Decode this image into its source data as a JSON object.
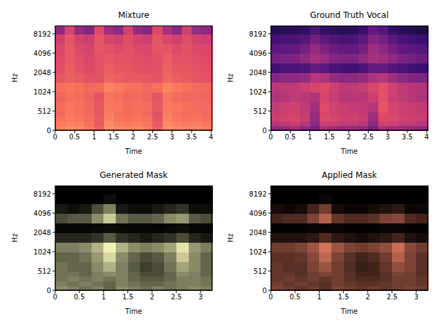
{
  "chart_data": [
    {
      "type": "heatmap",
      "title": "Mixture",
      "x_label": "Time",
      "y_label": "Hz",
      "log": "y",
      "xlim": [
        0,
        4.03
      ],
      "xticks": [
        0,
        0.5,
        1,
        1.5,
        2,
        2.5,
        3,
        3.5,
        4
      ],
      "ylim": [
        0,
        11025
      ],
      "yticks": [
        0,
        512,
        1024,
        2048,
        4096,
        8192
      ],
      "x_bins": [
        0,
        0.25,
        0.5,
        0.75,
        1,
        1.25,
        1.5,
        1.75,
        2,
        2.25,
        2.5,
        2.75,
        3,
        3.25,
        3.5,
        3.75,
        4.03
      ],
      "y_bins": [
        0,
        128,
        256,
        384,
        512,
        724,
        1024,
        1448,
        2048,
        2896,
        4096,
        5793,
        8192,
        11025
      ],
      "cells": [
        [
          0.74,
          0.76,
          0.75,
          0.72,
          0.66,
          0.77,
          0.75,
          0.74,
          0.75,
          0.73,
          0.66,
          0.77,
          0.75,
          0.74,
          0.75,
          0.73
        ],
        [
          0.72,
          0.74,
          0.73,
          0.7,
          0.64,
          0.76,
          0.73,
          0.72,
          0.73,
          0.71,
          0.64,
          0.75,
          0.73,
          0.72,
          0.73,
          0.71
        ],
        [
          0.7,
          0.73,
          0.71,
          0.69,
          0.64,
          0.74,
          0.71,
          0.7,
          0.71,
          0.7,
          0.63,
          0.74,
          0.72,
          0.7,
          0.71,
          0.69
        ],
        [
          0.68,
          0.72,
          0.7,
          0.68,
          0.63,
          0.73,
          0.7,
          0.69,
          0.7,
          0.68,
          0.62,
          0.73,
          0.7,
          0.69,
          0.7,
          0.68
        ],
        [
          0.69,
          0.71,
          0.7,
          0.68,
          0.64,
          0.72,
          0.71,
          0.69,
          0.7,
          0.69,
          0.64,
          0.72,
          0.71,
          0.7,
          0.69,
          0.68
        ],
        [
          0.67,
          0.7,
          0.69,
          0.67,
          0.63,
          0.71,
          0.7,
          0.68,
          0.69,
          0.67,
          0.63,
          0.71,
          0.69,
          0.68,
          0.68,
          0.67
        ],
        [
          0.7,
          0.71,
          0.7,
          0.68,
          0.69,
          0.74,
          0.72,
          0.7,
          0.7,
          0.68,
          0.7,
          0.74,
          0.72,
          0.7,
          0.69,
          0.68
        ],
        [
          0.63,
          0.66,
          0.64,
          0.62,
          0.62,
          0.67,
          0.65,
          0.64,
          0.64,
          0.63,
          0.62,
          0.67,
          0.65,
          0.64,
          0.63,
          0.62
        ],
        [
          0.61,
          0.65,
          0.62,
          0.6,
          0.62,
          0.65,
          0.63,
          0.63,
          0.62,
          0.61,
          0.62,
          0.66,
          0.63,
          0.63,
          0.62,
          0.61
        ],
        [
          0.6,
          0.64,
          0.61,
          0.59,
          0.62,
          0.64,
          0.62,
          0.62,
          0.61,
          0.6,
          0.62,
          0.65,
          0.62,
          0.62,
          0.61,
          0.6
        ],
        [
          0.59,
          0.64,
          0.6,
          0.58,
          0.63,
          0.62,
          0.6,
          0.62,
          0.6,
          0.59,
          0.63,
          0.63,
          0.6,
          0.62,
          0.6,
          0.59
        ],
        [
          0.56,
          0.63,
          0.57,
          0.55,
          0.63,
          0.58,
          0.56,
          0.61,
          0.57,
          0.55,
          0.63,
          0.59,
          0.56,
          0.61,
          0.57,
          0.55
        ],
        [
          0.4,
          0.58,
          0.42,
          0.38,
          0.6,
          0.44,
          0.4,
          0.56,
          0.42,
          0.38,
          0.6,
          0.46,
          0.4,
          0.56,
          0.42,
          0.4
        ]
      ]
    },
    {
      "type": "heatmap",
      "title": "Ground Truth Vocal",
      "x_label": "Time",
      "y_label": "Hz",
      "log": "y",
      "xlim": [
        0,
        4.03
      ],
      "xticks": [
        0,
        0.5,
        1,
        1.5,
        2,
        2.5,
        3,
        3.5,
        4
      ],
      "ylim": [
        0,
        11025
      ],
      "yticks": [
        0,
        512,
        1024,
        2048,
        4096,
        8192
      ],
      "x_bins": [
        0,
        0.25,
        0.5,
        0.75,
        1,
        1.25,
        1.5,
        1.75,
        2,
        2.25,
        2.5,
        2.75,
        3,
        3.25,
        3.5,
        3.75,
        4.03
      ],
      "y_bins": [
        0,
        128,
        256,
        384,
        512,
        724,
        1024,
        1448,
        2048,
        2896,
        4096,
        5793,
        8192,
        11025
      ],
      "cells": [
        [
          0.4,
          0.42,
          0.45,
          0.4,
          0.35,
          0.45,
          0.44,
          0.42,
          0.42,
          0.4,
          0.34,
          0.46,
          0.45,
          0.43,
          0.42,
          0.4
        ],
        [
          0.5,
          0.52,
          0.54,
          0.5,
          0.4,
          0.55,
          0.54,
          0.52,
          0.52,
          0.5,
          0.4,
          0.56,
          0.55,
          0.53,
          0.52,
          0.5
        ],
        [
          0.55,
          0.57,
          0.58,
          0.54,
          0.42,
          0.6,
          0.58,
          0.56,
          0.56,
          0.54,
          0.44,
          0.6,
          0.59,
          0.57,
          0.56,
          0.54
        ],
        [
          0.54,
          0.56,
          0.57,
          0.53,
          0.42,
          0.59,
          0.57,
          0.55,
          0.55,
          0.53,
          0.45,
          0.61,
          0.58,
          0.56,
          0.55,
          0.53
        ],
        [
          0.52,
          0.55,
          0.56,
          0.52,
          0.45,
          0.6,
          0.56,
          0.54,
          0.53,
          0.52,
          0.5,
          0.63,
          0.58,
          0.55,
          0.54,
          0.52
        ],
        [
          0.48,
          0.5,
          0.52,
          0.5,
          0.48,
          0.58,
          0.53,
          0.5,
          0.5,
          0.5,
          0.55,
          0.62,
          0.55,
          0.52,
          0.5,
          0.48
        ],
        [
          0.5,
          0.52,
          0.52,
          0.55,
          0.58,
          0.6,
          0.55,
          0.52,
          0.52,
          0.54,
          0.58,
          0.62,
          0.56,
          0.52,
          0.5,
          0.48
        ],
        [
          0.38,
          0.4,
          0.4,
          0.42,
          0.5,
          0.48,
          0.42,
          0.4,
          0.4,
          0.42,
          0.48,
          0.5,
          0.44,
          0.4,
          0.38,
          0.36
        ],
        [
          0.22,
          0.24,
          0.24,
          0.25,
          0.3,
          0.28,
          0.24,
          0.22,
          0.22,
          0.24,
          0.3,
          0.3,
          0.26,
          0.24,
          0.22,
          0.2
        ],
        [
          0.34,
          0.36,
          0.36,
          0.4,
          0.45,
          0.42,
          0.38,
          0.36,
          0.36,
          0.4,
          0.46,
          0.44,
          0.4,
          0.36,
          0.34,
          0.32
        ],
        [
          0.28,
          0.3,
          0.3,
          0.34,
          0.42,
          0.36,
          0.32,
          0.3,
          0.3,
          0.34,
          0.44,
          0.4,
          0.34,
          0.3,
          0.28,
          0.26
        ],
        [
          0.22,
          0.24,
          0.24,
          0.26,
          0.34,
          0.28,
          0.25,
          0.24,
          0.24,
          0.28,
          0.38,
          0.34,
          0.28,
          0.24,
          0.22,
          0.2
        ],
        [
          0.14,
          0.16,
          0.16,
          0.18,
          0.24,
          0.18,
          0.16,
          0.16,
          0.16,
          0.2,
          0.3,
          0.26,
          0.18,
          0.16,
          0.14,
          0.12
        ]
      ]
    },
    {
      "type": "heatmap",
      "title": "Generated Mask",
      "x_label": "Time",
      "y_label": "Hz",
      "log": "y",
      "xlim": [
        0,
        3.24
      ],
      "xticks": [
        0,
        0.5,
        1,
        1.5,
        2,
        2.5,
        3
      ],
      "ylim": [
        0,
        11025
      ],
      "yticks": [
        0,
        512,
        1024,
        2048,
        4096,
        8192
      ],
      "x_bins": [
        0,
        0.25,
        0.5,
        0.75,
        1,
        1.25,
        1.5,
        1.75,
        2,
        2.25,
        2.5,
        2.75,
        3,
        3.24
      ],
      "y_bins": [
        0,
        128,
        256,
        384,
        512,
        724,
        1024,
        1448,
        2048,
        2896,
        4096,
        5793,
        8192,
        11025
      ],
      "cells": [
        [
          0.55,
          0.5,
          0.45,
          0.5,
          0.4,
          0.55,
          0.5,
          0.45,
          0.5,
          0.45,
          0.5,
          0.55,
          0.5
        ],
        [
          0.5,
          0.45,
          0.5,
          0.45,
          0.4,
          0.5,
          0.45,
          0.4,
          0.4,
          0.45,
          0.5,
          0.5,
          0.45
        ],
        [
          0.45,
          0.5,
          0.45,
          0.5,
          0.45,
          0.5,
          0.4,
          0.35,
          0.35,
          0.4,
          0.5,
          0.5,
          0.45
        ],
        [
          0.45,
          0.45,
          0.4,
          0.5,
          0.55,
          0.5,
          0.4,
          0.3,
          0.3,
          0.4,
          0.55,
          0.5,
          0.4
        ],
        [
          0.45,
          0.4,
          0.4,
          0.55,
          0.7,
          0.5,
          0.35,
          0.25,
          0.3,
          0.45,
          0.65,
          0.55,
          0.4
        ],
        [
          0.4,
          0.4,
          0.45,
          0.6,
          0.85,
          0.55,
          0.4,
          0.3,
          0.35,
          0.5,
          0.8,
          0.55,
          0.4
        ],
        [
          0.5,
          0.5,
          0.55,
          0.7,
          0.95,
          0.7,
          0.55,
          0.5,
          0.55,
          0.65,
          0.9,
          0.6,
          0.5
        ],
        [
          0.15,
          0.15,
          0.15,
          0.2,
          0.35,
          0.2,
          0.15,
          0.1,
          0.15,
          0.2,
          0.3,
          0.15,
          0.1
        ],
        [
          0.02,
          0.02,
          0.02,
          0.03,
          0.05,
          0.03,
          0.02,
          0.02,
          0.02,
          0.03,
          0.05,
          0.02,
          0.02
        ],
        [
          0.3,
          0.35,
          0.35,
          0.55,
          0.8,
          0.45,
          0.35,
          0.35,
          0.4,
          0.55,
          0.6,
          0.35,
          0.3
        ],
        [
          0.1,
          0.05,
          0.1,
          0.3,
          0.5,
          0.1,
          0.05,
          0.05,
          0.1,
          0.15,
          0.2,
          0.05,
          0.05
        ],
        [
          0,
          0,
          0,
          0,
          0.05,
          0,
          0,
          0,
          0,
          0,
          0,
          0,
          0
        ],
        [
          0,
          0,
          0,
          0,
          0,
          0,
          0,
          0,
          0,
          0,
          0,
          0,
          0
        ]
      ]
    },
    {
      "type": "heatmap",
      "title": "Applied Mask",
      "x_label": "Time",
      "y_label": "Hz",
      "log": "y",
      "xlim": [
        0,
        3.24
      ],
      "xticks": [
        0,
        0.5,
        1,
        1.5,
        2,
        2.5,
        3
      ],
      "ylim": [
        0,
        11025
      ],
      "yticks": [
        0,
        512,
        1024,
        2048,
        4096,
        8192
      ],
      "x_bins": [
        0,
        0.25,
        0.5,
        0.75,
        1,
        1.25,
        1.5,
        1.75,
        2,
        2.25,
        2.5,
        2.75,
        3,
        3.24
      ],
      "y_bins": [
        0,
        128,
        256,
        384,
        512,
        724,
        1024,
        1448,
        2048,
        2896,
        4096,
        5793,
        8192,
        11025
      ],
      "cells": [
        [
          0.5,
          0.45,
          0.4,
          0.45,
          0.36,
          0.5,
          0.45,
          0.4,
          0.45,
          0.4,
          0.45,
          0.5,
          0.45
        ],
        [
          0.45,
          0.4,
          0.45,
          0.4,
          0.36,
          0.45,
          0.4,
          0.36,
          0.36,
          0.4,
          0.45,
          0.45,
          0.4
        ],
        [
          0.4,
          0.45,
          0.4,
          0.45,
          0.4,
          0.45,
          0.36,
          0.32,
          0.32,
          0.36,
          0.45,
          0.45,
          0.4
        ],
        [
          0.4,
          0.4,
          0.36,
          0.45,
          0.5,
          0.45,
          0.36,
          0.27,
          0.27,
          0.36,
          0.5,
          0.45,
          0.36
        ],
        [
          0.4,
          0.36,
          0.36,
          0.5,
          0.63,
          0.45,
          0.32,
          0.22,
          0.27,
          0.4,
          0.58,
          0.5,
          0.36
        ],
        [
          0.36,
          0.36,
          0.4,
          0.54,
          0.76,
          0.5,
          0.36,
          0.27,
          0.32,
          0.45,
          0.72,
          0.5,
          0.36
        ],
        [
          0.45,
          0.45,
          0.5,
          0.63,
          0.85,
          0.63,
          0.5,
          0.45,
          0.5,
          0.58,
          0.81,
          0.54,
          0.45
        ],
        [
          0.13,
          0.13,
          0.13,
          0.18,
          0.32,
          0.18,
          0.13,
          0.09,
          0.13,
          0.18,
          0.27,
          0.13,
          0.09
        ],
        [
          0.02,
          0.02,
          0.02,
          0.03,
          0.04,
          0.03,
          0.02,
          0.02,
          0.02,
          0.03,
          0.04,
          0.02,
          0.02
        ],
        [
          0.27,
          0.32,
          0.32,
          0.5,
          0.72,
          0.4,
          0.32,
          0.32,
          0.36,
          0.5,
          0.54,
          0.32,
          0.27
        ],
        [
          0.09,
          0.05,
          0.09,
          0.27,
          0.45,
          0.09,
          0.05,
          0.05,
          0.09,
          0.14,
          0.18,
          0.05,
          0.05
        ],
        [
          0,
          0,
          0,
          0,
          0.05,
          0,
          0,
          0,
          0,
          0,
          0,
          0,
          0
        ],
        [
          0,
          0,
          0,
          0,
          0,
          0,
          0,
          0,
          0,
          0,
          0,
          0,
          0
        ]
      ]
    }
  ]
}
